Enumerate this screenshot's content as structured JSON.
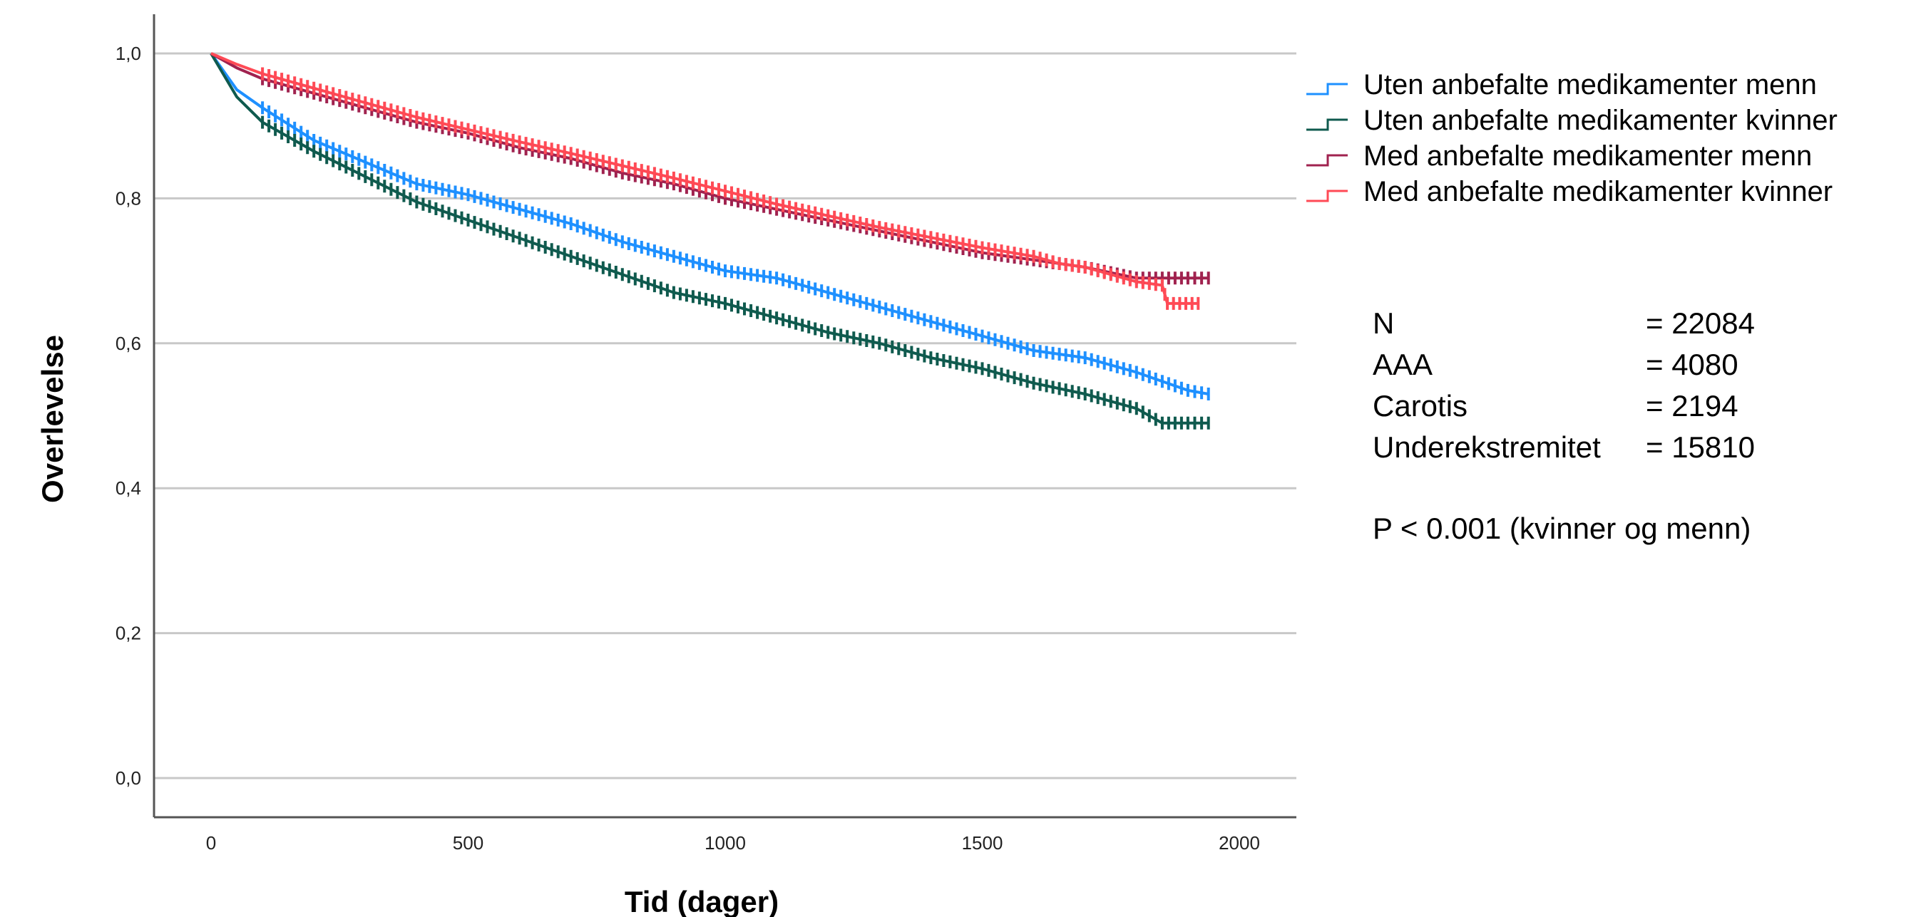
{
  "chart_data": {
    "type": "line",
    "xlabel": "Tid (dager)",
    "ylabel": "Overlevelse",
    "xlim": [
      -100,
      2100
    ],
    "ylim": [
      -0.05,
      1.05
    ],
    "xticks": [
      0,
      500,
      1000,
      1500,
      2000
    ],
    "xtick_labels": [
      "0",
      "500",
      "1000",
      "1500",
      "2000"
    ],
    "yticks": [
      0.0,
      0.2,
      0.4,
      0.6,
      0.8,
      1.0
    ],
    "ytick_labels": [
      "0,0",
      "0,2",
      "0,4",
      "0,6",
      "0,8",
      "1,0"
    ],
    "grid": "horizontal",
    "legend_position": "top-right",
    "series": [
      {
        "name": "Uten anbefalte medikamenter menn",
        "color": "#1e90ff",
        "x": [
          0,
          50,
          100,
          200,
          300,
          400,
          500,
          600,
          700,
          800,
          900,
          1000,
          1100,
          1200,
          1300,
          1400,
          1500,
          1600,
          1700,
          1800,
          1900,
          1940
        ],
        "y": [
          1.0,
          0.95,
          0.925,
          0.88,
          0.85,
          0.82,
          0.805,
          0.785,
          0.765,
          0.74,
          0.72,
          0.7,
          0.69,
          0.67,
          0.65,
          0.63,
          0.61,
          0.59,
          0.58,
          0.56,
          0.535,
          0.53
        ]
      },
      {
        "name": "Uten anbefalte medikamenter kvinner",
        "color": "#0f5a4e",
        "x": [
          0,
          50,
          100,
          200,
          300,
          400,
          500,
          600,
          700,
          800,
          900,
          1000,
          1100,
          1200,
          1300,
          1400,
          1500,
          1600,
          1700,
          1800,
          1850,
          1900,
          1940
        ],
        "y": [
          1.0,
          0.94,
          0.905,
          0.865,
          0.83,
          0.795,
          0.77,
          0.745,
          0.72,
          0.695,
          0.67,
          0.655,
          0.635,
          0.615,
          0.6,
          0.58,
          0.565,
          0.545,
          0.53,
          0.51,
          0.49,
          0.49,
          0.49
        ]
      },
      {
        "name": "Med anbefalte medikamenter menn",
        "color": "#a0224f",
        "x": [
          0,
          50,
          100,
          200,
          300,
          400,
          500,
          600,
          700,
          800,
          900,
          1000,
          1100,
          1200,
          1300,
          1400,
          1500,
          1600,
          1700,
          1800,
          1900,
          1940
        ],
        "y": [
          1.0,
          0.98,
          0.965,
          0.945,
          0.925,
          0.905,
          0.89,
          0.87,
          0.855,
          0.835,
          0.82,
          0.8,
          0.785,
          0.77,
          0.755,
          0.74,
          0.725,
          0.715,
          0.705,
          0.69,
          0.69,
          0.69
        ]
      },
      {
        "name": "Med anbefalte medikamenter kvinner",
        "color": "#ff4a55",
        "x": [
          0,
          50,
          100,
          200,
          300,
          400,
          500,
          600,
          700,
          800,
          900,
          1000,
          1100,
          1200,
          1300,
          1400,
          1500,
          1600,
          1650,
          1700,
          1750,
          1800,
          1850,
          1860,
          1920
        ],
        "y": [
          1.0,
          0.985,
          0.972,
          0.952,
          0.932,
          0.912,
          0.895,
          0.878,
          0.862,
          0.845,
          0.828,
          0.81,
          0.792,
          0.776,
          0.76,
          0.746,
          0.732,
          0.72,
          0.71,
          0.705,
          0.695,
          0.685,
          0.68,
          0.655,
          0.655
        ]
      }
    ]
  },
  "stats": [
    {
      "label": "N",
      "value": "= 22084"
    },
    {
      "label": "AAA",
      "value": "= 4080"
    },
    {
      "label": "Carotis",
      "value": "= 2194"
    },
    {
      "label": "Underekstremitet",
      "value": "= 15810"
    }
  ],
  "p_value_text": "P < 0.001 (kvinner og menn)"
}
